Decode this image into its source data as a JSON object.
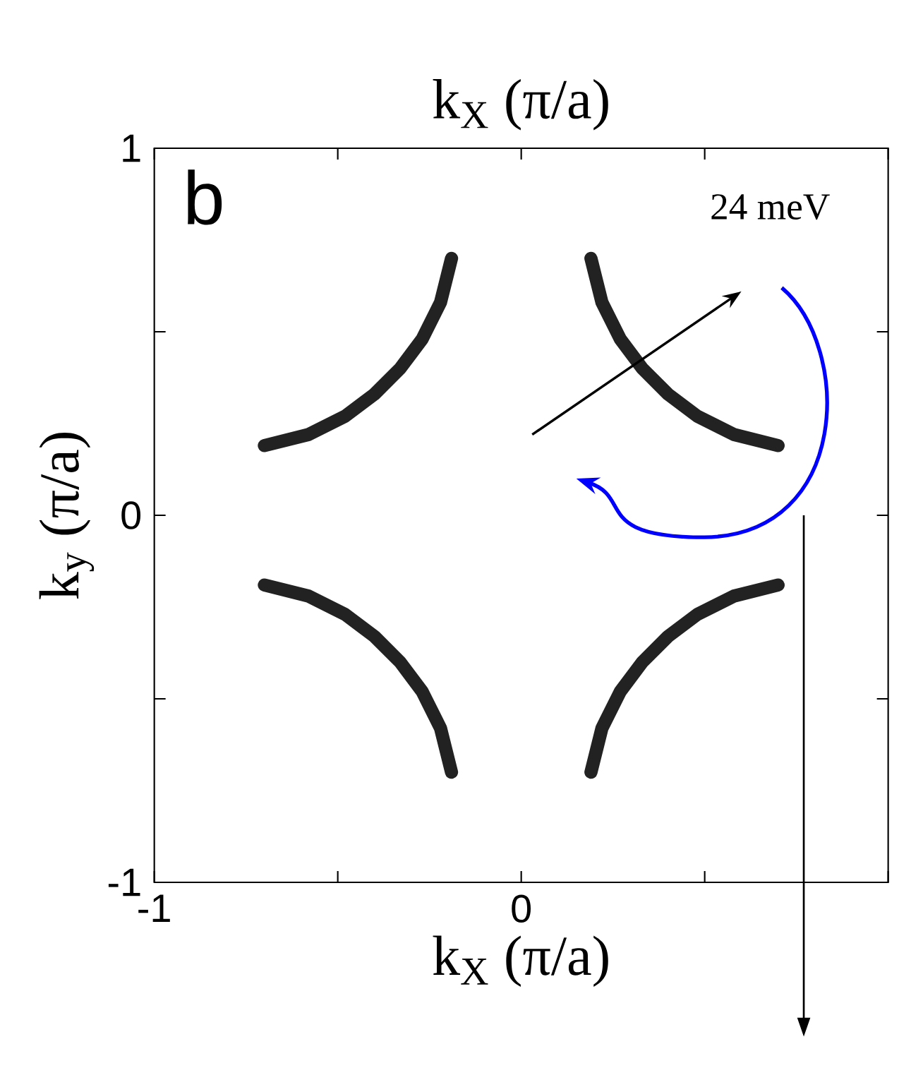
{
  "chart_data": {
    "type": "line",
    "xlabel": "k$_{X}$ (π/a)",
    "ylabel": "k$_{y}$ (π/a)",
    "x2label": "k$_{X}$ (π/a)",
    "annotations": [
      "b",
      "24 meV"
    ],
    "xlim": [
      -1,
      1
    ],
    "ylim": [
      -1,
      1
    ],
    "xticks": [
      -1,
      {
        "value": -0.5,
        "label": null
      },
      0,
      {
        "value": 0.5,
        "label": null
      },
      {
        "value": 1,
        "label": null
      }
    ],
    "yticks": [
      -1,
      {
        "value": -0.5,
        "label": null
      },
      0,
      {
        "value": 0.5,
        "label": null
      },
      1
    ],
    "series": [
      {
        "color": "#222222",
        "x": [
          0.19,
          0.22,
          0.27,
          0.33,
          0.4,
          0.48,
          0.58,
          0.7
        ],
        "values": [
          0.7,
          0.58,
          0.48,
          0.4,
          0.33,
          0.27,
          0.22,
          0.19
        ]
      },
      {
        "color": "#222222",
        "x": [
          -0.19,
          -0.22,
          -0.27,
          -0.33,
          -0.4,
          -0.48,
          -0.58,
          -0.7
        ],
        "values": [
          0.7,
          0.58,
          0.48,
          0.4,
          0.33,
          0.27,
          0.22,
          0.19
        ]
      },
      {
        "color": "#222222",
        "x": [
          -0.19,
          -0.22,
          -0.27,
          -0.33,
          -0.4,
          -0.48,
          -0.58,
          -0.7
        ],
        "values": [
          -0.7,
          -0.58,
          -0.48,
          -0.4,
          -0.33,
          -0.27,
          -0.22,
          -0.19
        ]
      },
      {
        "color": "#222222",
        "x": [
          0.19,
          0.22,
          0.27,
          0.33,
          0.4,
          0.48,
          0.58,
          0.7
        ],
        "values": [
          -0.7,
          -0.58,
          -0.48,
          -0.4,
          -0.33,
          -0.27,
          -0.22,
          -0.19
        ]
      }
    ]
  }
}
